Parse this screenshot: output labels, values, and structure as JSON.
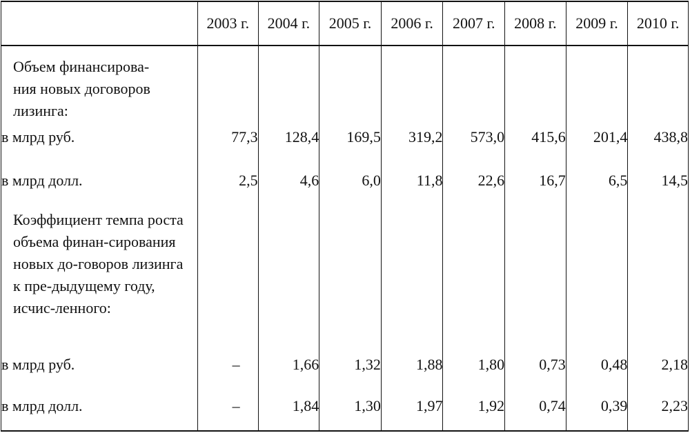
{
  "table": {
    "columns": [
      "",
      "2003 г.",
      "2004 г.",
      "2005 г.",
      "2006 г.",
      "2007 г.",
      "2008 г.",
      "2009 г.",
      "2010 г."
    ],
    "section1": {
      "label": "Объем финансирова-ния новых договоров лизинга:",
      "rows": [
        {
          "label": "в млрд руб.",
          "values": [
            "77,3",
            "128,4",
            "169,5",
            "319,2",
            "573,0",
            "415,6",
            "201,4",
            "438,8"
          ]
        },
        {
          "label": "в млрд долл.",
          "values": [
            "2,5",
            "4,6",
            "6,0",
            "11,8",
            "22,6",
            "16,7",
            "6,5",
            "14,5"
          ]
        }
      ]
    },
    "section2": {
      "label": "Коэффициент темпа роста объема финан-сирования новых до-говоров лизинга к пре-дыдущему году, исчис-ленного:",
      "rows": [
        {
          "label": "в млрд руб.",
          "values": [
            "–",
            "1,66",
            "1,32",
            "1,88",
            "1,80",
            "0,73",
            "0,48",
            "2,18"
          ]
        },
        {
          "label": "в млрд долл.",
          "values": [
            "–",
            "1,84",
            "1,30",
            "1,97",
            "1,92",
            "0,74",
            "0,39",
            "2,23"
          ]
        }
      ]
    }
  }
}
